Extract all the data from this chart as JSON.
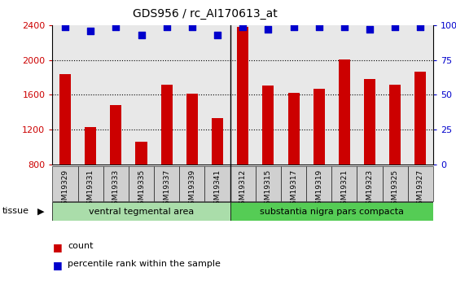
{
  "title": "GDS956 / rc_AI170613_at",
  "categories": [
    "GSM19329",
    "GSM19331",
    "GSM19333",
    "GSM19335",
    "GSM19337",
    "GSM19339",
    "GSM19341",
    "GSM19312",
    "GSM19315",
    "GSM19317",
    "GSM19319",
    "GSM19321",
    "GSM19323",
    "GSM19325",
    "GSM19327"
  ],
  "counts": [
    1840,
    1230,
    1480,
    1060,
    1720,
    1610,
    1330,
    2380,
    1710,
    1620,
    1670,
    2010,
    1780,
    1720,
    1870
  ],
  "percentile": [
    99,
    96,
    99,
    93,
    99,
    99,
    93,
    99,
    97,
    99,
    99,
    99,
    97,
    99,
    99
  ],
  "bar_color": "#cc0000",
  "dot_color": "#0000cc",
  "ylim_left": [
    800,
    2400
  ],
  "ylim_right": [
    0,
    100
  ],
  "yticks_left": [
    800,
    1200,
    1600,
    2000,
    2400
  ],
  "yticks_right": [
    0,
    25,
    50,
    75,
    100
  ],
  "ytick_labels_right": [
    "0",
    "25",
    "50",
    "75",
    "100%"
  ],
  "grid_lines": [
    1200,
    1600,
    2000
  ],
  "group1_label": "ventral tegmental area",
  "group2_label": "substantia nigra pars compacta",
  "group1_count": 7,
  "tissue_label": "tissue",
  "legend_count_label": "count",
  "legend_pct_label": "percentile rank within the sample",
  "plot_bg": "#e8e8e8",
  "xtick_box_color": "#d0d0d0",
  "group1_color": "#aaddaa",
  "group2_color": "#55cc55",
  "bar_width": 0.45,
  "dot_marker_size": 40,
  "white": "#ffffff"
}
